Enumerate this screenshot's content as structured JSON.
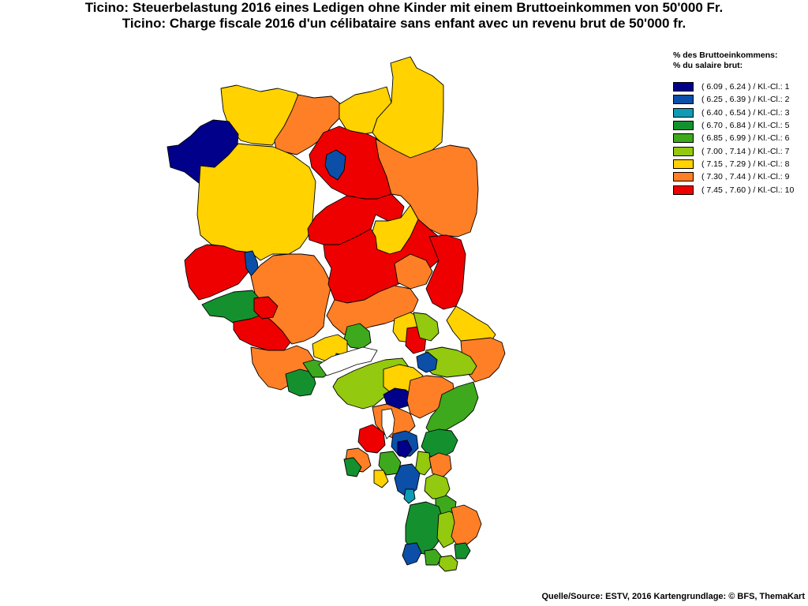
{
  "title": {
    "line_de": "Ticino: Steuerbelastung 2016 eines Ledigen ohne Kinder mit einem Bruttoeinkommen von 50'000 Fr.",
    "line_fr": "Ticino: Charge fiscale 2016 d'un célibataire sans enfant avec un revenu brut de 50'000 fr."
  },
  "legend": {
    "heading_de": "% des Bruttoeinkommens:",
    "heading_fr": "% du salaire brut:",
    "classes": [
      {
        "label": "( 6.09 , 6.24 ) / Kl.-Cl.: 1",
        "color": "#00008b"
      },
      {
        "label": "( 6.25 , 6.39 ) / Kl.-Cl.: 2",
        "color": "#0b4fa8"
      },
      {
        "label": "( 6.40 , 6.54 ) / Kl.-Cl.: 3",
        "color": "#0e9bb5"
      },
      {
        "label": "( 6.70 , 6.84 ) / Kl.-Cl.: 5",
        "color": "#14912e"
      },
      {
        "label": "( 6.85 , 6.99 ) / Kl.-Cl.: 6",
        "color": "#3ea91c"
      },
      {
        "label": "( 7.00 , 7.14 ) / Kl.-Cl.: 7",
        "color": "#93c90e"
      },
      {
        "label": "( 7.15 , 7.29 ) / Kl.-Cl.: 8",
        "color": "#ffd200"
      },
      {
        "label": "( 7.30 , 7.44 ) / Kl.-Cl.: 9",
        "color": "#ff7f27"
      },
      {
        "label": "( 7.45 , 7.60 ) / Kl.-Cl.: 10",
        "color": "#ee0000"
      }
    ]
  },
  "source": "Quelle/Source: ESTV, 2016 Kartengrundlage: © BFS, ThemaKart",
  "map": {
    "region": "Ticino",
    "lake_color": "#ffffff",
    "region_classes": [
      1,
      2,
      3,
      5,
      6,
      7,
      8,
      9,
      10
    ]
  }
}
